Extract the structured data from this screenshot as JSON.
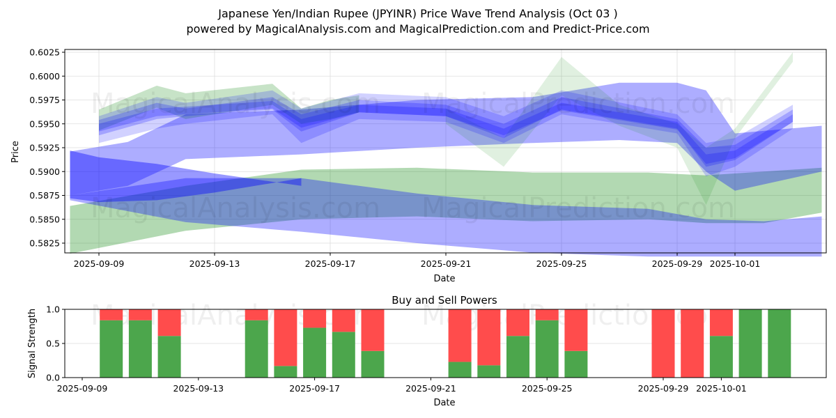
{
  "header": {
    "title": "Japanese Yen/Indian Rupee (JPYINR) Price Wave Trend Analysis (Oct 03 )",
    "subtitle": "powered by MagicalAnalysis.com and MagicalPrediction.com and Predict-Price.com"
  },
  "watermarks": [
    "MagicalAnalysis.com",
    "MagicalPrediction.com"
  ],
  "colors": {
    "blue": "#0000ff",
    "green": "#008000",
    "buy": "#4ca64c",
    "sell": "#ff4c4c",
    "grid": "#dddddd"
  },
  "chart_data": [
    {
      "type": "area",
      "title": "",
      "xlabel": "Date",
      "ylabel": "Price",
      "ylim": [
        0.5812,
        0.6028
      ],
      "xlim": [
        "2025-09-08",
        "2025-10-04"
      ],
      "x_ticks": [
        "2025-09-09",
        "2025-09-13",
        "2025-09-17",
        "2025-09-21",
        "2025-09-25",
        "2025-09-29",
        "2025-10-01"
      ],
      "y_ticks": [
        "0.5825",
        "0.5850",
        "0.5875",
        "0.5900",
        "0.5925",
        "0.5950",
        "0.5975",
        "0.6000",
        "0.6025"
      ],
      "grid": true,
      "series": [
        {
          "name": "green-wide-lower",
          "color": "green",
          "opacity": 0.3,
          "x": [
            "2025-09-08",
            "2025-09-12",
            "2025-09-16",
            "2025-09-20",
            "2025-09-24",
            "2025-09-28",
            "2025-09-30",
            "2025-10-02",
            "2025-10-04"
          ],
          "upper": [
            0.5864,
            0.5885,
            0.5902,
            0.5904,
            0.5899,
            0.5899,
            0.5896,
            0.59,
            0.5904
          ],
          "lower": [
            0.5814,
            0.5838,
            0.585,
            0.5853,
            0.5848,
            0.585,
            0.5846,
            0.5846,
            0.5857
          ]
        },
        {
          "name": "blue-wide-lower",
          "color": "blue",
          "opacity": 0.32,
          "x": [
            "2025-09-08",
            "2025-09-12",
            "2025-09-16",
            "2025-09-20",
            "2025-09-24",
            "2025-09-28",
            "2025-09-30",
            "2025-10-02",
            "2025-10-04"
          ],
          "upper": [
            0.5875,
            0.5893,
            0.5893,
            0.5877,
            0.5865,
            0.5861,
            0.585,
            0.5848,
            0.5853
          ],
          "lower": [
            0.587,
            0.5847,
            0.5837,
            0.5825,
            0.5815,
            0.5811,
            0.5811,
            0.5811,
            0.5811
          ]
        },
        {
          "name": "blue-wide-upper",
          "color": "blue",
          "opacity": 0.32,
          "x": [
            "2025-09-08",
            "2025-09-10",
            "2025-09-12",
            "2025-09-16",
            "2025-09-20",
            "2025-09-24",
            "2025-09-27",
            "2025-09-29",
            "2025-09-30",
            "2025-10-01",
            "2025-10-04"
          ],
          "upper": [
            0.5921,
            0.5931,
            0.596,
            0.5965,
            0.5975,
            0.5978,
            0.5993,
            0.5993,
            0.5985,
            0.594,
            0.5948
          ],
          "lower": [
            0.5875,
            0.5885,
            0.5913,
            0.5918,
            0.5925,
            0.593,
            0.5933,
            0.593,
            0.59,
            0.588,
            0.59
          ]
        },
        {
          "name": "blue-dark-left",
          "color": "blue",
          "opacity": 0.4,
          "x": [
            "2025-09-08",
            "2025-09-09",
            "2025-09-11",
            "2025-09-13",
            "2025-09-16"
          ],
          "upper": [
            0.5922,
            0.5915,
            0.5908,
            0.5898,
            0.5885
          ],
          "lower": [
            0.5872,
            0.5868,
            0.587,
            0.5878,
            0.5893
          ]
        },
        {
          "name": "green-spike",
          "color": "green",
          "opacity": 0.12,
          "x": [
            "2025-09-21",
            "2025-09-23",
            "2025-09-25",
            "2025-09-27",
            "2025-09-29",
            "2025-09-30",
            "2025-10-01",
            "2025-10-03"
          ],
          "upper": [
            0.5966,
            0.5935,
            0.602,
            0.597,
            0.595,
            0.5925,
            0.5945,
            0.6025
          ],
          "lower": [
            0.595,
            0.5905,
            0.598,
            0.5948,
            0.5925,
            0.5865,
            0.5935,
            0.6015
          ]
        },
        {
          "name": "green-top",
          "color": "green",
          "opacity": 0.22,
          "x": [
            "2025-09-09",
            "2025-09-11",
            "2025-09-12",
            "2025-09-15",
            "2025-09-16",
            "2025-09-17",
            "2025-09-18"
          ],
          "upper": [
            0.5965,
            0.599,
            0.5982,
            0.5992,
            0.5966,
            0.5975,
            0.598
          ],
          "lower": [
            0.5943,
            0.5967,
            0.5955,
            0.597,
            0.595,
            0.5955,
            0.5962
          ]
        },
        {
          "name": "blue-core-1",
          "color": "blue",
          "opacity": 0.18,
          "x": [
            "2025-09-09",
            "2025-09-11",
            "2025-09-12",
            "2025-09-15",
            "2025-09-16",
            "2025-09-18",
            "2025-09-21",
            "2025-09-23",
            "2025-09-25",
            "2025-09-29",
            "2025-09-30",
            "2025-10-01",
            "2025-10-03"
          ],
          "upper": [
            0.5958,
            0.5978,
            0.5972,
            0.5985,
            0.5966,
            0.5982,
            0.5978,
            0.5958,
            0.5985,
            0.596,
            0.593,
            0.5935,
            0.597
          ],
          "lower": [
            0.593,
            0.5945,
            0.595,
            0.596,
            0.593,
            0.5955,
            0.5952,
            0.593,
            0.596,
            0.594,
            0.5895,
            0.5905,
            0.5945
          ]
        },
        {
          "name": "blue-core-2",
          "color": "blue",
          "opacity": 0.22,
          "x": [
            "2025-09-09",
            "2025-09-11",
            "2025-09-12",
            "2025-09-15",
            "2025-09-16",
            "2025-09-18",
            "2025-09-21",
            "2025-09-23",
            "2025-09-25",
            "2025-09-29",
            "2025-09-30",
            "2025-10-01",
            "2025-10-03"
          ],
          "upper": [
            0.5954,
            0.5972,
            0.5966,
            0.5978,
            0.596,
            0.5975,
            0.597,
            0.595,
            0.5978,
            0.5955,
            0.5925,
            0.5928,
            0.5965
          ],
          "lower": [
            0.5938,
            0.5955,
            0.5958,
            0.5965,
            0.5942,
            0.5962,
            0.5958,
            0.5935,
            0.5965,
            0.5945,
            0.5905,
            0.5912,
            0.5952
          ]
        },
        {
          "name": "blue-core-3",
          "color": "blue",
          "opacity": 0.22,
          "x": [
            "2025-09-09",
            "2025-09-11",
            "2025-09-12",
            "2025-09-15",
            "2025-09-16",
            "2025-09-18",
            "2025-09-21",
            "2025-09-23",
            "2025-09-25",
            "2025-09-29",
            "2025-09-30",
            "2025-10-01",
            "2025-10-03"
          ],
          "upper": [
            0.595,
            0.5966,
            0.5968,
            0.5974,
            0.5955,
            0.597,
            0.5966,
            0.5945,
            0.5972,
            0.5952,
            0.5918,
            0.5922,
            0.596
          ],
          "lower": [
            0.5942,
            0.5958,
            0.596,
            0.5966,
            0.5946,
            0.5962,
            0.5958,
            0.5938,
            0.5964,
            0.5944,
            0.5908,
            0.5914,
            0.5952
          ]
        }
      ]
    },
    {
      "type": "bar",
      "title": "Buy and Sell Powers",
      "xlabel": "Date",
      "ylabel": "Signal Strength",
      "ylim": [
        0,
        1
      ],
      "xlim": [
        "2025-09-08",
        "2025-10-04"
      ],
      "x_ticks": [
        "2025-09-09",
        "2025-09-13",
        "2025-09-17",
        "2025-09-21",
        "2025-09-25",
        "2025-09-29",
        "2025-10-01"
      ],
      "y_ticks": [
        "0.0",
        "0.5",
        "1.0"
      ],
      "categories": [
        "2025-09-10",
        "2025-09-11",
        "2025-09-12",
        "2025-09-15",
        "2025-09-16",
        "2025-09-17",
        "2025-09-18",
        "2025-09-19",
        "2025-09-22",
        "2025-09-23",
        "2025-09-24",
        "2025-09-25",
        "2025-09-26",
        "2025-09-29",
        "2025-09-30",
        "2025-10-01",
        "2025-10-02",
        "2025-10-03"
      ],
      "series": [
        {
          "name": "Buy",
          "color": "buy",
          "values": [
            0.84,
            0.84,
            0.61,
            0.84,
            0.17,
            0.73,
            0.67,
            0.39,
            0.23,
            0.18,
            0.61,
            0.84,
            0.39,
            0.0,
            0.0,
            0.61,
            1.0,
            1.0
          ]
        },
        {
          "name": "Sell",
          "color": "sell",
          "values": [
            0.16,
            0.16,
            0.39,
            0.16,
            0.83,
            0.27,
            0.33,
            0.61,
            0.77,
            0.82,
            0.39,
            0.16,
            0.61,
            1.0,
            1.0,
            0.39,
            0.0,
            0.0
          ]
        }
      ]
    }
  ]
}
